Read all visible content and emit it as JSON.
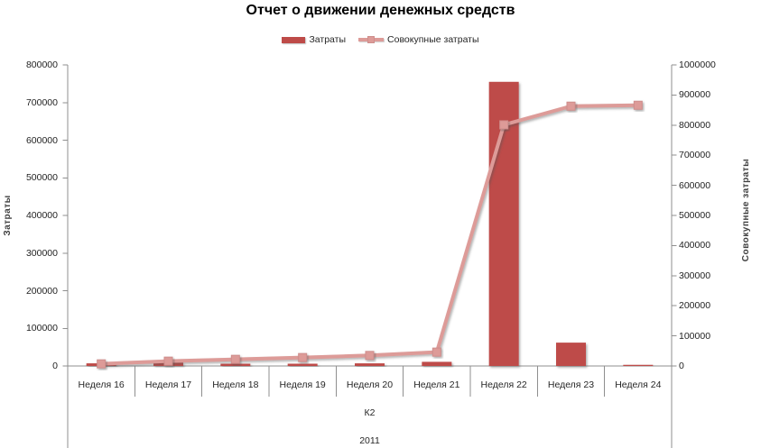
{
  "title": "Отчет о движении денежных средств",
  "colors": {
    "bar": "#BE4B48",
    "line": "#DD9B98",
    "marker_border": "#CE8E8C",
    "axis_line": "#8F8F8F",
    "text": "#262626"
  },
  "chart_data": {
    "type": "bar",
    "subtype": "combo bar+line, dual y-axes",
    "title": "Отчет о движении денежных средств",
    "categories": [
      "Неделя 16",
      "Неделя 17",
      "Неделя 18",
      "Неделя 19",
      "Неделя 20",
      "Неделя 21",
      "Неделя 22",
      "Неделя 23",
      "Неделя 24"
    ],
    "series": [
      {
        "name": "Затраты",
        "type": "bar",
        "axis": "left",
        "values": [
          7000,
          9000,
          6000,
          6000,
          7000,
          11000,
          755000,
          62000,
          3000
        ]
      },
      {
        "name": "Совокупные затраты",
        "type": "line",
        "axis": "right",
        "values": [
          7000,
          16000,
          22000,
          28000,
          35000,
          46000,
          801000,
          863000,
          866000
        ]
      }
    ],
    "left_axis": {
      "title": "Затраты",
      "min": 0,
      "max": 800000,
      "tick_step": 100000
    },
    "right_axis": {
      "title": "Совокупные затраты",
      "min": 0,
      "max": 1000000,
      "tick_step": 100000
    },
    "x_axis": {
      "group_label": "К2",
      "year_label": "2011"
    },
    "legend_position": "top",
    "gridlines": false
  }
}
